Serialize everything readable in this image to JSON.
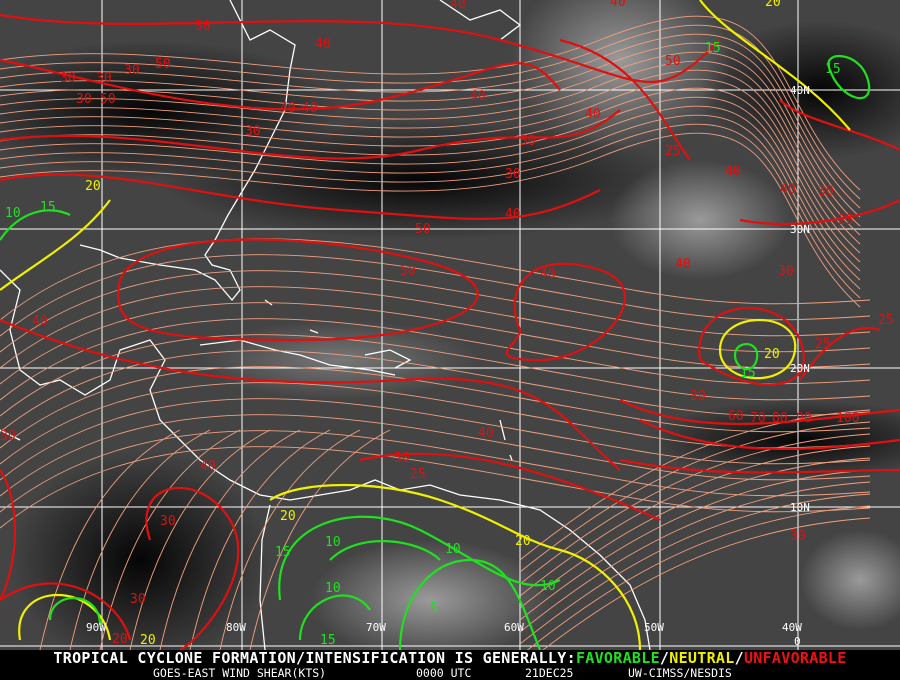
{
  "map": {
    "grid": {
      "longitudes": [
        "90W",
        "80W",
        "70W",
        "60W",
        "50W",
        "40W"
      ],
      "latitudes": [
        "40N",
        "30N",
        "20N",
        "10N",
        "0"
      ]
    },
    "contour_colors": {
      "favorable": "#20e020",
      "neutral": "#f0f000",
      "unfavorable": "#e01010"
    },
    "streamline_color": "#f0a080",
    "coastline_color": "#ffffff",
    "contour_labels": {
      "unfavorable": [
        "30",
        "30",
        "30",
        "30",
        "30",
        "50",
        "50",
        "30",
        "40",
        "40",
        "50",
        "40",
        "40",
        "30",
        "25",
        "40",
        "40",
        "50",
        "40",
        "40",
        "50",
        "40",
        "30",
        "30",
        "40",
        "30",
        "25",
        "25",
        "25",
        "30",
        "30",
        "30",
        "50",
        "60",
        "70",
        "80",
        "90",
        "100",
        "40",
        "30",
        "25",
        "40",
        "40",
        "30",
        "20",
        "40",
        "40"
      ],
      "neutral": [
        "20",
        "20",
        "20",
        "20",
        "20",
        "20"
      ],
      "favorable": [
        "15",
        "10",
        "15",
        "15",
        "10",
        "10",
        "15",
        "10",
        "5",
        "10",
        "15",
        "15"
      ]
    }
  },
  "footer": {
    "headline_prefix": "TROPICAL CYCLONE FORMATION/INTENSIFICATION IS GENERALLY:",
    "favorable": "FAVORABLE",
    "slash": "/",
    "neutral": "NEUTRAL",
    "unfavorable": "UNFAVORABLE",
    "product": "GOES-EAST WIND SHEAR(KTS)",
    "time": "0000 UTC",
    "date": "21DEC25",
    "source": "UW-CIMSS/NESDIS"
  }
}
